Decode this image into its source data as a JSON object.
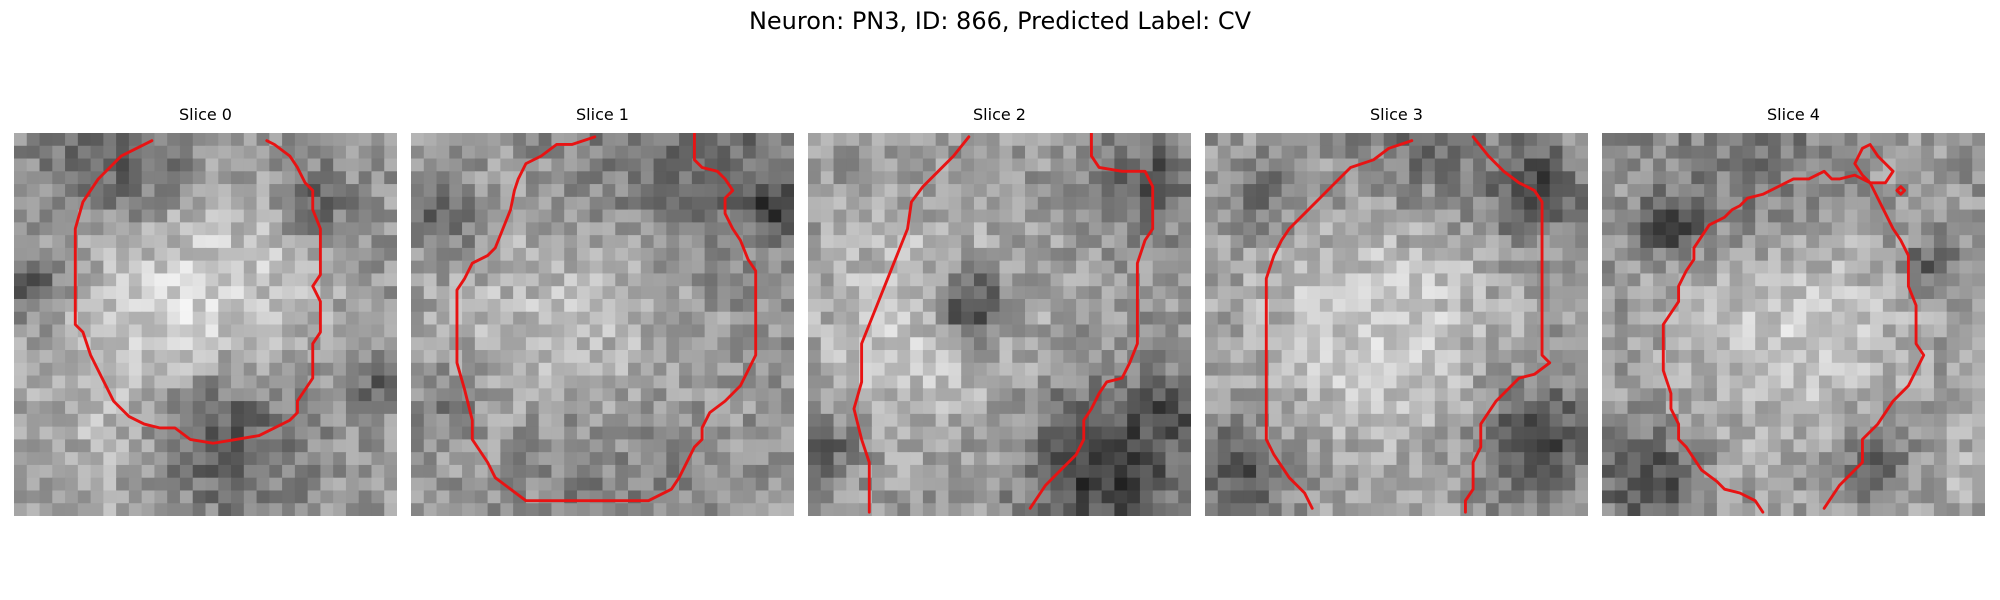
{
  "figure": {
    "title": "Neuron: PN3, ID: 866, Predicted Label: CV"
  },
  "panels": [
    {
      "title": "Slice 0",
      "seed": 11,
      "bright": [
        [
          0.45,
          0.45,
          0.32,
          0.85
        ],
        [
          0.75,
          0.28,
          0.12,
          0.2
        ],
        [
          0.2,
          0.85,
          0.25,
          0.25
        ]
      ],
      "dark": [
        [
          0.28,
          0.07,
          0.2,
          0.45
        ],
        [
          0.05,
          0.4,
          0.08,
          0.6
        ],
        [
          0.78,
          0.18,
          0.1,
          0.5
        ],
        [
          0.55,
          0.78,
          0.2,
          0.55
        ],
        [
          0.95,
          0.65,
          0.07,
          0.4
        ]
      ],
      "contours": [
        [
          [
            0.36,
            0.02
          ],
          [
            0.28,
            0.06
          ],
          [
            0.22,
            0.12
          ],
          [
            0.18,
            0.18
          ],
          [
            0.16,
            0.25
          ],
          [
            0.16,
            0.38
          ],
          [
            0.16,
            0.5
          ],
          [
            0.18,
            0.52
          ],
          [
            0.2,
            0.58
          ],
          [
            0.22,
            0.62
          ],
          [
            0.24,
            0.66
          ],
          [
            0.26,
            0.7
          ],
          [
            0.28,
            0.72
          ],
          [
            0.3,
            0.74
          ],
          [
            0.34,
            0.76
          ],
          [
            0.38,
            0.77
          ],
          [
            0.42,
            0.77
          ],
          [
            0.46,
            0.8
          ],
          [
            0.52,
            0.81
          ],
          [
            0.58,
            0.8
          ],
          [
            0.64,
            0.79
          ],
          [
            0.68,
            0.77
          ],
          [
            0.72,
            0.75
          ],
          [
            0.74,
            0.73
          ],
          [
            0.74,
            0.7
          ],
          [
            0.76,
            0.67
          ],
          [
            0.78,
            0.64
          ],
          [
            0.78,
            0.6
          ],
          [
            0.78,
            0.55
          ],
          [
            0.8,
            0.52
          ],
          [
            0.8,
            0.44
          ],
          [
            0.78,
            0.4
          ],
          [
            0.8,
            0.37
          ],
          [
            0.8,
            0.3
          ],
          [
            0.8,
            0.25
          ],
          [
            0.78,
            0.2
          ],
          [
            0.78,
            0.15
          ],
          [
            0.76,
            0.13
          ],
          [
            0.74,
            0.09
          ],
          [
            0.72,
            0.06
          ],
          [
            0.68,
            0.03
          ],
          [
            0.66,
            0.02
          ]
        ]
      ]
    },
    {
      "title": "Slice 1",
      "seed": 23,
      "bright": [
        [
          0.45,
          0.5,
          0.35,
          0.7
        ]
      ],
      "dark": [
        [
          0.72,
          0.07,
          0.35,
          0.35
        ],
        [
          0.95,
          0.2,
          0.06,
          0.6
        ],
        [
          0.08,
          0.22,
          0.1,
          0.4
        ],
        [
          0.1,
          0.7,
          0.08,
          0.3
        ],
        [
          0.5,
          0.82,
          0.3,
          0.25
        ]
      ],
      "contours": [
        [
          [
            0.48,
            0.01
          ],
          [
            0.42,
            0.03
          ],
          [
            0.38,
            0.03
          ],
          [
            0.34,
            0.06
          ],
          [
            0.3,
            0.08
          ],
          [
            0.28,
            0.12
          ],
          [
            0.27,
            0.15
          ],
          [
            0.26,
            0.2
          ],
          [
            0.24,
            0.25
          ],
          [
            0.22,
            0.3
          ],
          [
            0.2,
            0.32
          ],
          [
            0.16,
            0.34
          ],
          [
            0.14,
            0.38
          ],
          [
            0.12,
            0.41
          ],
          [
            0.12,
            0.6
          ],
          [
            0.14,
            0.67
          ],
          [
            0.16,
            0.75
          ],
          [
            0.16,
            0.8
          ],
          [
            0.18,
            0.83
          ],
          [
            0.2,
            0.86
          ],
          [
            0.22,
            0.9
          ],
          [
            0.26,
            0.93
          ],
          [
            0.3,
            0.96
          ],
          [
            0.62,
            0.96
          ],
          [
            0.68,
            0.93
          ],
          [
            0.7,
            0.9
          ],
          [
            0.72,
            0.86
          ],
          [
            0.74,
            0.82
          ],
          [
            0.76,
            0.8
          ],
          [
            0.76,
            0.77
          ],
          [
            0.78,
            0.73
          ],
          [
            0.82,
            0.7
          ],
          [
            0.86,
            0.66
          ],
          [
            0.88,
            0.62
          ],
          [
            0.9,
            0.58
          ],
          [
            0.9,
            0.36
          ],
          [
            0.88,
            0.33
          ],
          [
            0.86,
            0.28
          ],
          [
            0.84,
            0.25
          ],
          [
            0.82,
            0.21
          ],
          [
            0.82,
            0.17
          ],
          [
            0.84,
            0.15
          ],
          [
            0.82,
            0.12
          ],
          [
            0.8,
            0.1
          ],
          [
            0.76,
            0.09
          ],
          [
            0.74,
            0.07
          ],
          [
            0.74,
            0.0
          ]
        ]
      ]
    },
    {
      "title": "Slice 2",
      "seed": 37,
      "bright": [
        [
          0.3,
          0.5,
          0.3,
          0.7
        ]
      ],
      "dark": [
        [
          0.42,
          0.45,
          0.1,
          0.9
        ],
        [
          0.05,
          0.82,
          0.08,
          0.45
        ],
        [
          0.78,
          0.87,
          0.2,
          0.7
        ],
        [
          0.9,
          0.12,
          0.12,
          0.45
        ],
        [
          0.95,
          0.72,
          0.07,
          0.4
        ]
      ],
      "contours": [
        [
          [
            0.42,
            0.01
          ],
          [
            0.38,
            0.06
          ],
          [
            0.34,
            0.1
          ],
          [
            0.3,
            0.14
          ],
          [
            0.27,
            0.18
          ],
          [
            0.26,
            0.25
          ],
          [
            0.24,
            0.3
          ],
          [
            0.22,
            0.35
          ],
          [
            0.2,
            0.4
          ],
          [
            0.18,
            0.45
          ],
          [
            0.16,
            0.5
          ],
          [
            0.14,
            0.55
          ],
          [
            0.14,
            0.65
          ],
          [
            0.12,
            0.72
          ],
          [
            0.14,
            0.8
          ],
          [
            0.16,
            0.86
          ],
          [
            0.16,
            0.99
          ]
        ],
        [
          [
            0.74,
            0.0
          ],
          [
            0.74,
            0.06
          ],
          [
            0.76,
            0.09
          ],
          [
            0.82,
            0.1
          ],
          [
            0.88,
            0.1
          ],
          [
            0.9,
            0.14
          ],
          [
            0.9,
            0.25
          ],
          [
            0.88,
            0.28
          ],
          [
            0.86,
            0.34
          ],
          [
            0.86,
            0.55
          ],
          [
            0.84,
            0.6
          ],
          [
            0.82,
            0.64
          ],
          [
            0.78,
            0.65
          ],
          [
            0.76,
            0.68
          ],
          [
            0.74,
            0.72
          ],
          [
            0.72,
            0.75
          ],
          [
            0.72,
            0.8
          ],
          [
            0.7,
            0.84
          ],
          [
            0.66,
            0.88
          ],
          [
            0.62,
            0.92
          ],
          [
            0.58,
            0.98
          ]
        ]
      ]
    },
    {
      "title": "Slice 3",
      "seed": 53,
      "bright": [
        [
          0.45,
          0.5,
          0.35,
          0.7
        ]
      ],
      "dark": [
        [
          0.86,
          0.15,
          0.12,
          0.6
        ],
        [
          0.86,
          0.8,
          0.14,
          0.65
        ],
        [
          0.1,
          0.88,
          0.12,
          0.5
        ],
        [
          0.15,
          0.18,
          0.1,
          0.35
        ],
        [
          0.55,
          0.05,
          0.2,
          0.3
        ]
      ],
      "contours": [
        [
          [
            0.54,
            0.02
          ],
          [
            0.48,
            0.04
          ],
          [
            0.44,
            0.07
          ],
          [
            0.38,
            0.09
          ],
          [
            0.34,
            0.13
          ],
          [
            0.3,
            0.17
          ],
          [
            0.26,
            0.21
          ],
          [
            0.22,
            0.25
          ],
          [
            0.2,
            0.28
          ],
          [
            0.18,
            0.32
          ],
          [
            0.16,
            0.38
          ],
          [
            0.16,
            0.8
          ],
          [
            0.18,
            0.84
          ],
          [
            0.2,
            0.87
          ],
          [
            0.22,
            0.9
          ],
          [
            0.26,
            0.94
          ],
          [
            0.28,
            0.98
          ]
        ],
        [
          [
            0.7,
            0.01
          ],
          [
            0.74,
            0.06
          ],
          [
            0.78,
            0.1
          ],
          [
            0.82,
            0.13
          ],
          [
            0.86,
            0.15
          ],
          [
            0.88,
            0.18
          ],
          [
            0.88,
            0.55
          ],
          [
            0.88,
            0.58
          ],
          [
            0.9,
            0.6
          ],
          [
            0.86,
            0.63
          ],
          [
            0.82,
            0.64
          ],
          [
            0.8,
            0.66
          ],
          [
            0.76,
            0.7
          ],
          [
            0.74,
            0.73
          ],
          [
            0.72,
            0.76
          ],
          [
            0.72,
            0.82
          ],
          [
            0.7,
            0.86
          ],
          [
            0.7,
            0.93
          ],
          [
            0.68,
            0.96
          ],
          [
            0.68,
            0.99
          ]
        ]
      ]
    },
    {
      "title": "Slice 4",
      "seed": 71,
      "bright": [
        [
          0.5,
          0.5,
          0.33,
          0.7
        ],
        [
          0.92,
          0.88,
          0.15,
          0.3
        ]
      ],
      "dark": [
        [
          0.18,
          0.25,
          0.08,
          0.6
        ],
        [
          0.12,
          0.9,
          0.12,
          0.6
        ],
        [
          0.72,
          0.85,
          0.1,
          0.55
        ],
        [
          0.85,
          0.35,
          0.08,
          0.45
        ],
        [
          0.4,
          0.1,
          0.25,
          0.3
        ]
      ],
      "contours": [
        [
          [
            0.42,
            0.99
          ],
          [
            0.4,
            0.96
          ],
          [
            0.36,
            0.94
          ],
          [
            0.32,
            0.93
          ],
          [
            0.3,
            0.91
          ],
          [
            0.26,
            0.88
          ],
          [
            0.24,
            0.85
          ],
          [
            0.22,
            0.82
          ],
          [
            0.2,
            0.8
          ],
          [
            0.2,
            0.76
          ],
          [
            0.18,
            0.72
          ],
          [
            0.18,
            0.68
          ],
          [
            0.16,
            0.62
          ],
          [
            0.16,
            0.55
          ],
          [
            0.16,
            0.5
          ],
          [
            0.18,
            0.47
          ],
          [
            0.2,
            0.44
          ],
          [
            0.2,
            0.4
          ],
          [
            0.22,
            0.36
          ],
          [
            0.24,
            0.33
          ],
          [
            0.24,
            0.3
          ],
          [
            0.26,
            0.27
          ],
          [
            0.28,
            0.24
          ],
          [
            0.32,
            0.22
          ],
          [
            0.34,
            0.2
          ],
          [
            0.36,
            0.19
          ],
          [
            0.38,
            0.17
          ],
          [
            0.42,
            0.16
          ],
          [
            0.46,
            0.14
          ],
          [
            0.5,
            0.12
          ],
          [
            0.54,
            0.12
          ],
          [
            0.58,
            0.1
          ],
          [
            0.6,
            0.12
          ],
          [
            0.62,
            0.12
          ],
          [
            0.66,
            0.11
          ],
          [
            0.7,
            0.13
          ],
          [
            0.72,
            0.17
          ],
          [
            0.74,
            0.21
          ],
          [
            0.76,
            0.25
          ],
          [
            0.78,
            0.28
          ],
          [
            0.8,
            0.32
          ],
          [
            0.8,
            0.4
          ],
          [
            0.82,
            0.45
          ],
          [
            0.82,
            0.55
          ],
          [
            0.84,
            0.58
          ],
          [
            0.82,
            0.62
          ],
          [
            0.8,
            0.66
          ],
          [
            0.78,
            0.68
          ],
          [
            0.76,
            0.7
          ],
          [
            0.72,
            0.76
          ],
          [
            0.7,
            0.78
          ],
          [
            0.68,
            0.8
          ],
          [
            0.68,
            0.86
          ],
          [
            0.66,
            0.88
          ],
          [
            0.64,
            0.9
          ],
          [
            0.62,
            0.92
          ],
          [
            0.58,
            0.98
          ]
        ],
        [
          [
            0.76,
            0.1
          ],
          [
            0.74,
            0.13
          ],
          [
            0.7,
            0.13
          ],
          [
            0.68,
            0.11
          ],
          [
            0.66,
            0.08
          ],
          [
            0.68,
            0.04
          ],
          [
            0.7,
            0.03
          ],
          [
            0.72,
            0.06
          ],
          [
            0.74,
            0.08
          ],
          [
            0.76,
            0.1
          ]
        ],
        [
          [
            0.78,
            0.14
          ],
          [
            0.79,
            0.15
          ],
          [
            0.78,
            0.16
          ],
          [
            0.77,
            0.15
          ],
          [
            0.78,
            0.14
          ]
        ]
      ]
    }
  ]
}
